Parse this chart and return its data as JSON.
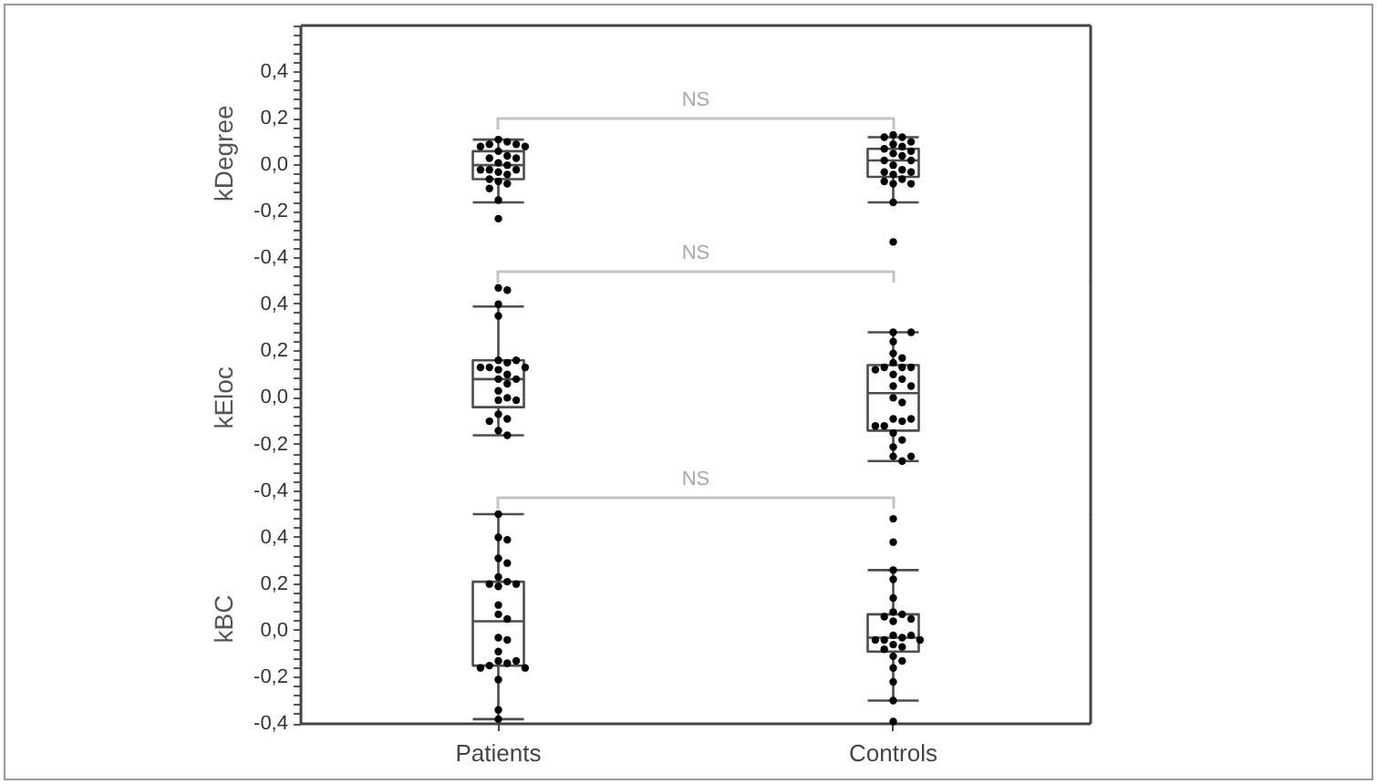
{
  "chart_data": [
    {
      "type": "box",
      "ylabel": "kDegree",
      "categories": [
        "Patients",
        "Controls"
      ],
      "ylim": [
        -0.5,
        0.6
      ],
      "yticks": [
        {
          "value": -0.48,
          "label": null
        },
        {
          "value": -0.44,
          "label": null
        },
        {
          "value": -0.4,
          "label": "-0,4"
        },
        {
          "value": -0.36,
          "label": null
        },
        {
          "value": -0.32,
          "label": null
        },
        {
          "value": -0.28,
          "label": null
        },
        {
          "value": -0.24,
          "label": null
        },
        {
          "value": -0.2,
          "label": "-0,2"
        },
        {
          "value": -0.16,
          "label": null
        },
        {
          "value": -0.12,
          "label": null
        },
        {
          "value": -0.08,
          "label": null
        },
        {
          "value": -0.04,
          "label": null
        },
        {
          "value": 0,
          "label": "0,0"
        },
        {
          "value": 0.04,
          "label": null
        },
        {
          "value": 0.08,
          "label": null
        },
        {
          "value": 0.12,
          "label": null
        },
        {
          "value": 0.16,
          "label": null
        },
        {
          "value": 0.2,
          "label": "0,2"
        },
        {
          "value": 0.24,
          "label": null
        },
        {
          "value": 0.28,
          "label": null
        },
        {
          "value": 0.32,
          "label": null
        },
        {
          "value": 0.36,
          "label": null
        },
        {
          "value": 0.4,
          "label": "0,4"
        },
        {
          "value": 0.44,
          "label": null
        },
        {
          "value": 0.48,
          "label": null
        },
        {
          "value": 0.52,
          "label": null
        },
        {
          "value": 0.56,
          "label": null
        },
        {
          "value": 0.6,
          "label": null
        }
      ],
      "tick_labels": "y",
      "marker": "circle",
      "annotations": [
        "NS"
      ],
      "series": [
        {
          "color": "#4d4d4d",
          "boxes": [
            {
              "low": -0.16,
              "q1": -0.06,
              "median": 0.0,
              "q3": 0.06,
              "high": 0.11
            },
            {
              "low": -0.16,
              "q1": -0.05,
              "median": 0.02,
              "q3": 0.07,
              "high": 0.12
            }
          ]
        },
        {
          "type": "scatter",
          "color": "#000000",
          "x": [
            "Patients",
            "Patients",
            "Patients",
            "Patients",
            "Patients",
            "Patients",
            "Patients",
            "Patients",
            "Patients",
            "Patients",
            "Patients",
            "Patients",
            "Patients",
            "Patients",
            "Patients",
            "Patients",
            "Patients",
            "Patients",
            "Patients",
            "Patients",
            "Patients",
            "Patients",
            "Patients",
            "Controls",
            "Controls",
            "Controls",
            "Controls",
            "Controls",
            "Controls",
            "Controls",
            "Controls",
            "Controls",
            "Controls",
            "Controls",
            "Controls",
            "Controls",
            "Controls",
            "Controls",
            "Controls",
            "Controls",
            "Controls",
            "Controls",
            "Controls",
            "Controls",
            "Controls",
            "Controls"
          ],
          "values": [
            0.11,
            0.1,
            0.09,
            0.09,
            0.08,
            0.08,
            0.06,
            0.04,
            0.03,
            0.03,
            0.01,
            0.0,
            -0.02,
            -0.02,
            -0.02,
            -0.03,
            -0.04,
            -0.06,
            -0.07,
            -0.08,
            -0.1,
            -0.15,
            -0.23,
            0.13,
            0.12,
            0.12,
            0.1,
            0.09,
            0.08,
            0.07,
            0.06,
            0.05,
            0.04,
            0.02,
            0.02,
            0.0,
            -0.02,
            -0.03,
            -0.03,
            -0.04,
            -0.06,
            -0.07,
            -0.08,
            -0.08,
            -0.16,
            -0.33
          ]
        }
      ]
    },
    {
      "type": "box",
      "ylabel": "kEloc",
      "categories": [
        "Patients",
        "Controls"
      ],
      "ylim": [
        -0.5,
        0.5
      ],
      "yticks": [
        {
          "value": -0.48,
          "label": null
        },
        {
          "value": -0.44,
          "label": null
        },
        {
          "value": -0.4,
          "label": "-0,4"
        },
        {
          "value": -0.36,
          "label": null
        },
        {
          "value": -0.32,
          "label": null
        },
        {
          "value": -0.28,
          "label": null
        },
        {
          "value": -0.24,
          "label": null
        },
        {
          "value": -0.2,
          "label": "-0,2"
        },
        {
          "value": -0.16,
          "label": null
        },
        {
          "value": -0.12,
          "label": null
        },
        {
          "value": -0.08,
          "label": null
        },
        {
          "value": -0.04,
          "label": null
        },
        {
          "value": 0,
          "label": "0,0"
        },
        {
          "value": 0.04,
          "label": null
        },
        {
          "value": 0.08,
          "label": null
        },
        {
          "value": 0.12,
          "label": null
        },
        {
          "value": 0.16,
          "label": null
        },
        {
          "value": 0.2,
          "label": "0,2"
        },
        {
          "value": 0.24,
          "label": null
        },
        {
          "value": 0.28,
          "label": null
        },
        {
          "value": 0.32,
          "label": null
        },
        {
          "value": 0.36,
          "label": null
        },
        {
          "value": 0.4,
          "label": "0,4"
        },
        {
          "value": 0.44,
          "label": null
        },
        {
          "value": 0.48,
          "label": null
        }
      ],
      "tick_labels": "y",
      "marker": "circle",
      "annotations": [
        "NS"
      ],
      "series": [
        {
          "color": "#4d4d4d",
          "boxes": [
            {
              "low": -0.16,
              "q1": -0.04,
              "median": 0.08,
              "q3": 0.16,
              "high": 0.39
            },
            {
              "low": -0.27,
              "q1": -0.14,
              "median": 0.02,
              "q3": 0.14,
              "high": 0.28
            }
          ]
        },
        {
          "type": "scatter",
          "color": "#000000",
          "x": [
            "Patients",
            "Patients",
            "Patients",
            "Patients",
            "Patients",
            "Patients",
            "Patients",
            "Patients",
            "Patients",
            "Patients",
            "Patients",
            "Patients",
            "Patients",
            "Patients",
            "Patients",
            "Patients",
            "Patients",
            "Patients",
            "Patients",
            "Patients",
            "Patients",
            "Patients",
            "Patients",
            "Patients",
            "Controls",
            "Controls",
            "Controls",
            "Controls",
            "Controls",
            "Controls",
            "Controls",
            "Controls",
            "Controls",
            "Controls",
            "Controls",
            "Controls",
            "Controls",
            "Controls",
            "Controls",
            "Controls",
            "Controls",
            "Controls",
            "Controls",
            "Controls",
            "Controls",
            "Controls",
            "Controls",
            "Controls",
            "Controls",
            "Controls",
            "Controls"
          ],
          "values": [
            0.47,
            0.46,
            0.4,
            0.35,
            0.16,
            0.16,
            0.15,
            0.13,
            0.13,
            0.13,
            0.12,
            0.1,
            0.08,
            0.08,
            0.06,
            0.03,
            0.0,
            -0.01,
            -0.01,
            -0.07,
            -0.09,
            -0.1,
            -0.14,
            -0.16,
            0.28,
            0.28,
            0.24,
            0.19,
            0.17,
            0.15,
            0.13,
            0.13,
            0.13,
            0.12,
            0.1,
            0.08,
            0.05,
            0.05,
            0.0,
            -0.02,
            -0.09,
            -0.09,
            -0.1,
            -0.12,
            -0.12,
            -0.15,
            -0.18,
            -0.21,
            -0.25,
            -0.25,
            -0.27
          ]
        }
      ]
    },
    {
      "type": "box",
      "ylabel": "kBC",
      "categories": [
        "Patients",
        "Controls"
      ],
      "ylim": [
        -0.4,
        0.5
      ],
      "yticks": [
        {
          "value": -0.4,
          "label": "-0,4"
        },
        {
          "value": -0.36,
          "label": null
        },
        {
          "value": -0.32,
          "label": null
        },
        {
          "value": -0.28,
          "label": null
        },
        {
          "value": -0.24,
          "label": null
        },
        {
          "value": -0.2,
          "label": "-0,2"
        },
        {
          "value": -0.16,
          "label": null
        },
        {
          "value": -0.12,
          "label": null
        },
        {
          "value": -0.08,
          "label": null
        },
        {
          "value": -0.04,
          "label": null
        },
        {
          "value": 0,
          "label": "0,0"
        },
        {
          "value": 0.04,
          "label": null
        },
        {
          "value": 0.08,
          "label": null
        },
        {
          "value": 0.12,
          "label": null
        },
        {
          "value": 0.16,
          "label": null
        },
        {
          "value": 0.2,
          "label": "0,2"
        },
        {
          "value": 0.24,
          "label": null
        },
        {
          "value": 0.28,
          "label": null
        },
        {
          "value": 0.32,
          "label": null
        },
        {
          "value": 0.36,
          "label": null
        },
        {
          "value": 0.4,
          "label": "0,4"
        },
        {
          "value": 0.44,
          "label": null
        },
        {
          "value": 0.48,
          "label": null
        }
      ],
      "marker": "circle",
      "annotations": [
        "NS"
      ],
      "series": [
        {
          "color": "#4d4d4d",
          "boxes": [
            {
              "low": -0.38,
              "q1": -0.15,
              "median": 0.04,
              "q3": 0.21,
              "high": 0.5
            },
            {
              "low": -0.3,
              "q1": -0.09,
              "median": -0.03,
              "q3": 0.07,
              "high": 0.26
            }
          ]
        },
        {
          "type": "scatter",
          "color": "#000000",
          "x": [
            "Patients",
            "Patients",
            "Patients",
            "Patients",
            "Patients",
            "Patients",
            "Patients",
            "Patients",
            "Patients",
            "Patients",
            "Patients",
            "Patients",
            "Patients",
            "Patients",
            "Patients",
            "Patients",
            "Patients",
            "Patients",
            "Patients",
            "Patients",
            "Patients",
            "Patients",
            "Patients",
            "Patients",
            "Patients",
            "Controls",
            "Controls",
            "Controls",
            "Controls",
            "Controls",
            "Controls",
            "Controls",
            "Controls",
            "Controls",
            "Controls",
            "Controls",
            "Controls",
            "Controls",
            "Controls",
            "Controls",
            "Controls",
            "Controls",
            "Controls",
            "Controls",
            "Controls",
            "Controls",
            "Controls",
            "Controls",
            "Controls",
            "Controls"
          ],
          "values": [
            0.5,
            0.4,
            0.39,
            0.31,
            0.29,
            0.23,
            0.21,
            0.2,
            0.2,
            0.19,
            0.11,
            0.07,
            0.05,
            -0.03,
            -0.04,
            -0.09,
            -0.13,
            -0.13,
            -0.14,
            -0.15,
            -0.16,
            -0.16,
            -0.21,
            -0.34,
            -0.38,
            0.48,
            0.38,
            0.26,
            0.22,
            0.14,
            0.08,
            0.07,
            0.06,
            0.05,
            0.04,
            -0.02,
            -0.02,
            -0.03,
            -0.04,
            -0.04,
            -0.04,
            -0.06,
            -0.07,
            -0.08,
            -0.11,
            -0.13,
            -0.16,
            -0.22,
            -0.3,
            -0.39
          ]
        }
      ]
    }
  ]
}
